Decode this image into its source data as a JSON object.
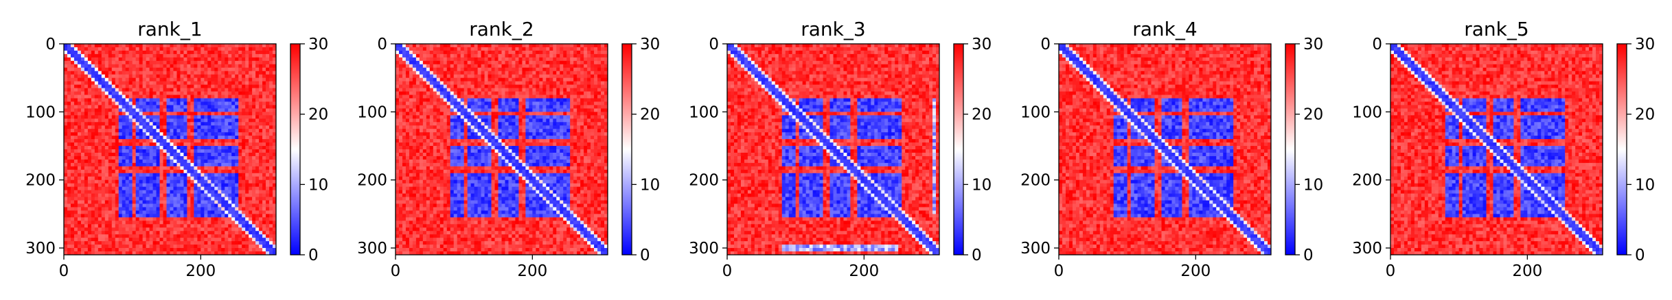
{
  "figure": {
    "colormap": {
      "name": "bwr",
      "low": "#0000ff",
      "mid": "#ffffff",
      "high": "#ff0000"
    },
    "colors": {
      "axes": "#000000",
      "background": "#ffffff"
    }
  },
  "chart_data": [
    {
      "type": "heatmap",
      "title": "rank_1",
      "xlim": [
        0,
        310
      ],
      "ylim": [
        310,
        0
      ],
      "xticks": [
        0,
        200
      ],
      "xtick_labels": [
        "0",
        "200"
      ],
      "yticks": [
        0,
        100,
        200,
        300
      ],
      "ytick_labels": [
        "0",
        "100",
        "200",
        "300"
      ],
      "colorbar": {
        "range": [
          0,
          30
        ],
        "ticks": [
          0,
          10,
          20,
          30
        ],
        "tick_labels": [
          "0",
          "10",
          "20",
          "30"
        ]
      },
      "structure": {
        "matrix_size": 310,
        "block_start": 80,
        "block_end": 255,
        "gap_lines": [
          103,
          145,
          185
        ],
        "extra_blue_regions": []
      }
    },
    {
      "type": "heatmap",
      "title": "rank_2",
      "xlim": [
        0,
        310
      ],
      "ylim": [
        310,
        0
      ],
      "xticks": [
        0,
        200
      ],
      "xtick_labels": [
        "0",
        "200"
      ],
      "yticks": [
        0,
        100,
        200,
        300
      ],
      "ytick_labels": [
        "0",
        "100",
        "200",
        "300"
      ],
      "colorbar": {
        "range": [
          0,
          30
        ],
        "ticks": [
          0,
          10,
          20,
          30
        ],
        "tick_labels": [
          "0",
          "10",
          "20",
          "30"
        ]
      },
      "structure": {
        "matrix_size": 310,
        "block_start": 80,
        "block_end": 255,
        "gap_lines": [
          103,
          145,
          185
        ],
        "extra_blue_regions": []
      }
    },
    {
      "type": "heatmap",
      "title": "rank_3",
      "xlim": [
        0,
        310
      ],
      "ylim": [
        310,
        0
      ],
      "xticks": [
        0,
        200
      ],
      "xtick_labels": [
        "0",
        "200"
      ],
      "yticks": [
        0,
        100,
        200,
        300
      ],
      "ytick_labels": [
        "0",
        "100",
        "200",
        "300"
      ],
      "colorbar": {
        "range": [
          0,
          30
        ],
        "ticks": [
          0,
          10,
          20,
          30
        ],
        "tick_labels": [
          "0",
          "10",
          "20",
          "30"
        ]
      },
      "structure": {
        "matrix_size": 310,
        "block_start": 80,
        "block_end": 255,
        "gap_lines": [
          103,
          145,
          185
        ],
        "extra_blue_regions": [
          [
            80,
            250,
            295,
            303
          ],
          [
            298,
            306,
            80,
            250
          ]
        ]
      }
    },
    {
      "type": "heatmap",
      "title": "rank_4",
      "xlim": [
        0,
        310
      ],
      "ylim": [
        310,
        0
      ],
      "xticks": [
        0,
        200
      ],
      "xtick_labels": [
        "0",
        "200"
      ],
      "yticks": [
        0,
        100,
        200,
        300
      ],
      "ytick_labels": [
        "0",
        "100",
        "200",
        "300"
      ],
      "colorbar": {
        "range": [
          0,
          30
        ],
        "ticks": [
          0,
          10,
          20,
          30
        ],
        "tick_labels": [
          "0",
          "10",
          "20",
          "30"
        ]
      },
      "structure": {
        "matrix_size": 310,
        "block_start": 80,
        "block_end": 255,
        "gap_lines": [
          103,
          145,
          185
        ],
        "extra_blue_regions": []
      }
    },
    {
      "type": "heatmap",
      "title": "rank_5",
      "xlim": [
        0,
        310
      ],
      "ylim": [
        310,
        0
      ],
      "xticks": [
        0,
        200
      ],
      "xtick_labels": [
        "0",
        "200"
      ],
      "yticks": [
        0,
        100,
        200,
        300
      ],
      "ytick_labels": [
        "0",
        "100",
        "200",
        "300"
      ],
      "colorbar": {
        "range": [
          0,
          30
        ],
        "ticks": [
          0,
          10,
          20,
          30
        ],
        "tick_labels": [
          "0",
          "10",
          "20",
          "30"
        ]
      },
      "structure": {
        "matrix_size": 310,
        "block_start": 80,
        "block_end": 255,
        "gap_lines": [
          103,
          145,
          185
        ],
        "extra_blue_regions": []
      }
    }
  ]
}
